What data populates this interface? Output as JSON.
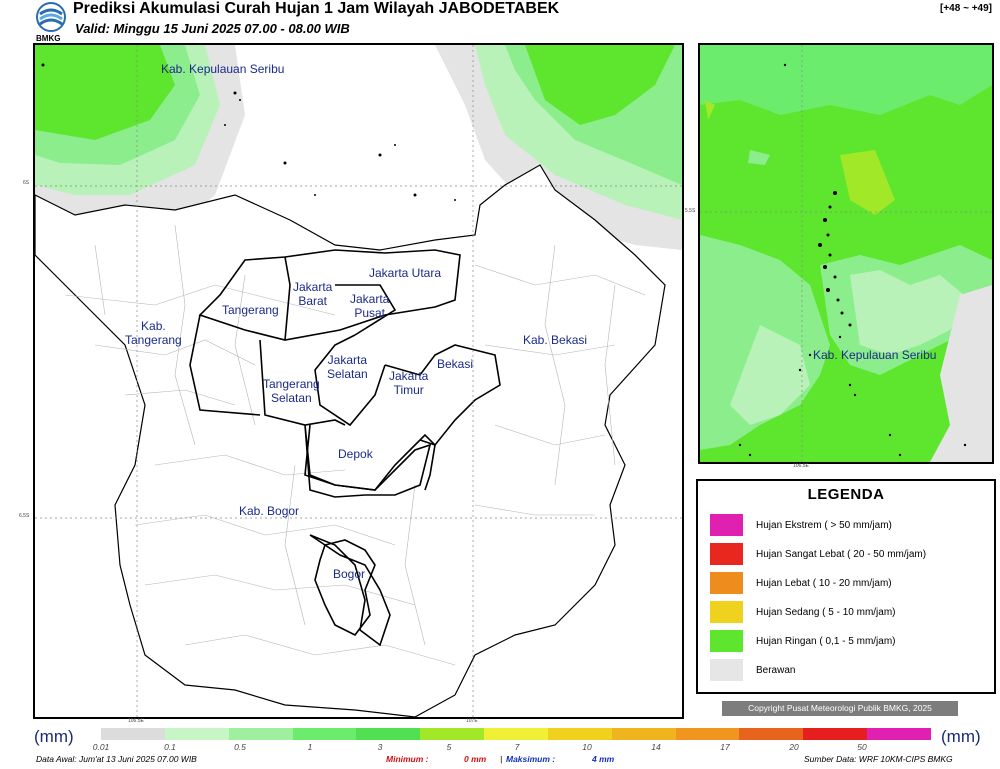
{
  "header": {
    "title": "Prediksi Akumulasi Curah Hujan 1 Jam Wilayah JABODETABEK",
    "subtitle": "Valid: Minggu 15 Juni 2025 07.00 - 08.00 WIB",
    "forecast_range": "[+48 ~ +49]",
    "logo_text": "BMKG"
  },
  "main_map": {
    "regions": {
      "kab_kepulauan_seribu": "Kab. Kepulauan Seribu",
      "jakarta_utara": "Jakarta Utara",
      "jakarta_barat": "Jakarta\nBarat",
      "jakarta_pusat": "Jakarta\nPusat",
      "tangerang": "Tangerang",
      "kab_tangerang": "Kab.\nTangerang",
      "kab_bekasi": "Kab. Bekasi",
      "jakarta_selatan": "Jakarta\nSelatan",
      "jakarta_timur": "Jakarta\nTimur",
      "bekasi": "Bekasi",
      "tangerang_selatan": "Tangerang\nSelatan",
      "depok": "Depok",
      "kab_bogor": "Kab. Bogor",
      "bogor": "Bogor"
    },
    "lat_labels": [
      "6S",
      "6.5S"
    ],
    "lon_labels": [
      "106.5E",
      "107E"
    ]
  },
  "inset_map": {
    "region_label": "Kab. Kepulauan Seribu",
    "lat_label": "5.5S",
    "lon_label": "106.5E"
  },
  "legend": {
    "title": "LEGENDA",
    "items": [
      {
        "label": "Hujan Ekstrem ( > 50 mm/jam)",
        "color": "#e020b0"
      },
      {
        "label": "Hujan Sangat Lebat ( 20 - 50 mm/jam)",
        "color": "#e8281e"
      },
      {
        "label": "Hujan Lebat ( 10 - 20 mm/jam)",
        "color": "#ee8c1e"
      },
      {
        "label": "Hujan Sedang ( 5 - 10 mm/jam)",
        "color": "#eed21e"
      },
      {
        "label": "Hujan Ringan ( 0,1 - 5 mm/jam)",
        "color": "#5ee62e"
      },
      {
        "label": "Berawan",
        "color": "#e6e6e6"
      }
    ]
  },
  "copyright": "Copyright Pusat Meteorologi Publik BMKG, 2025",
  "colorbar": {
    "unit": "(mm)",
    "ticks": [
      "0.01",
      "0.1",
      "0.5",
      "1",
      "3",
      "5",
      "7",
      "10",
      "14",
      "17",
      "20",
      "50"
    ],
    "colors": [
      "#dcdcdc",
      "#c6f5c6",
      "#9ef09e",
      "#6cec6c",
      "#52e052",
      "#a0e828",
      "#f0f036",
      "#f0d21e",
      "#f0b41e",
      "#f0961e",
      "#e8641e",
      "#e61e1e",
      "#e020b0"
    ]
  },
  "footer": {
    "data_awal": "Data Awal: Jum'at 13 Juni 2025 07.00 WIB",
    "minimum_label": "Minimum :",
    "minimum_value": "0 mm",
    "maksimum_label": "Maksimum :",
    "maksimum_value": "4 mm",
    "sumber": "Sumber Data: WRF 10KM-CIPS BMKG"
  }
}
